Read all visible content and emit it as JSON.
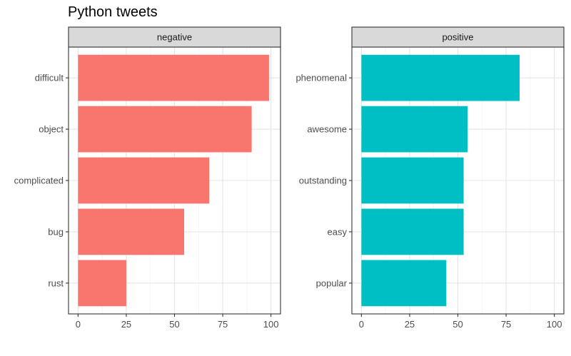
{
  "chart_data": {
    "type": "bar",
    "orientation": "horizontal",
    "title": "Python tweets",
    "xlabel": "",
    "ylabel": "",
    "xlim": [
      0,
      100
    ],
    "xticks": [
      "0",
      "25",
      "50",
      "75",
      "100"
    ],
    "grid": true,
    "panels": [
      {
        "facet": "negative",
        "color": "#F8766D",
        "categories": [
          "difficult",
          "object",
          "complicated",
          "bug",
          "rust"
        ],
        "values": [
          99,
          90,
          68,
          55,
          25
        ]
      },
      {
        "facet": "positive",
        "color": "#00BFC4",
        "categories": [
          "phenomenal",
          "awesome",
          "outstanding",
          "easy",
          "popular"
        ],
        "values": [
          82,
          55,
          53,
          53,
          44
        ]
      }
    ]
  }
}
